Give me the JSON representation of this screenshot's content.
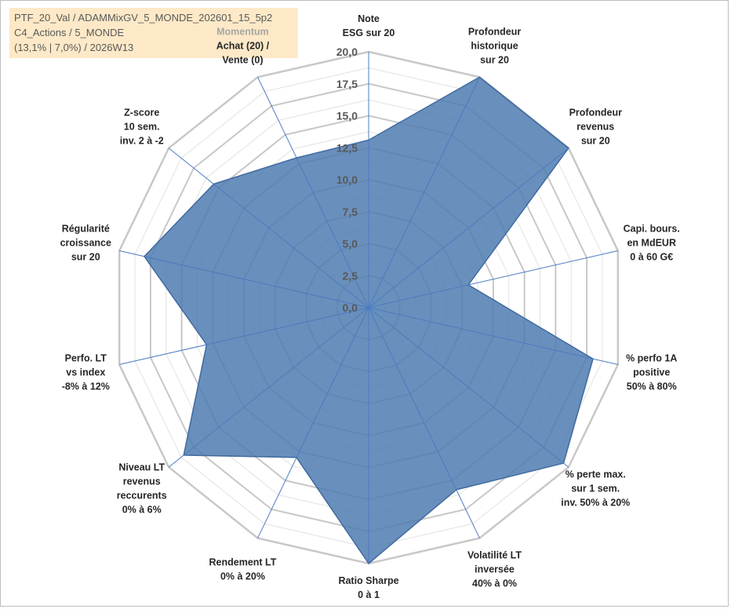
{
  "header": {
    "line1": "PTF_20_Val / ADAMMixGV_5_MONDE_202601_15_5p2",
    "line2": "C4_Actions / 5_MONDE",
    "line3": "(13,1% | 7,0%) / 2026W13"
  },
  "chart_data": {
    "type": "radar",
    "rmin": 0,
    "rmax": 20,
    "tick_labels": [
      "0,0",
      "2,5",
      "5,0",
      "7,5",
      "10,0",
      "12,5",
      "15,0",
      "17,5",
      "20,0"
    ],
    "grid": true,
    "axes": [
      {
        "label": [
          "Note",
          "ESG sur 20"
        ]
      },
      {
        "label": [
          "Profondeur",
          "historique",
          "sur 20"
        ]
      },
      {
        "label": [
          "Profondeur",
          "revenus",
          "sur 20"
        ]
      },
      {
        "label": [
          "Capi. bours.",
          "en MdEUR",
          "0 à 60 G€"
        ]
      },
      {
        "label": [
          "% perfo 1A",
          "positive",
          "50% à 80%"
        ]
      },
      {
        "label": [
          "% perte max.",
          "sur 1 sem.",
          "inv. 50% à 20%"
        ]
      },
      {
        "label": [
          "Volatilité LT",
          "inversée",
          "40% à 0%"
        ]
      },
      {
        "label": [
          "Ratio Sharpe",
          "0 à 1"
        ]
      },
      {
        "label": [
          "Rendement LT",
          "0% à 20%"
        ]
      },
      {
        "label": [
          "Niveau LT",
          "revenus",
          "reccurents",
          "0% à 6%"
        ]
      },
      {
        "label": [
          "Perfo. LT",
          "vs index",
          "-8% à 12%"
        ]
      },
      {
        "label": [
          "Régularité",
          "croissance",
          "sur 20"
        ]
      },
      {
        "label": [
          "Z-score",
          "10 sem.",
          "inv. 2 à -2"
        ]
      },
      {
        "label": [
          "Momentum",
          "Achat (20) /",
          "Vente (0)"
        ],
        "first_line_muted": true
      }
    ],
    "series": [
      {
        "values": [
          13.1,
          20.0,
          20.0,
          8.0,
          18.0,
          19.5,
          15.8,
          20.0,
          13.0,
          18.5,
          13.0,
          18.0,
          15.5,
          13.0
        ]
      }
    ],
    "colors": {
      "fill": "#4f7bb0",
      "stroke": "#3f6aa0",
      "grid_major": "#c8c8c8",
      "grid_minor": "#e2e2e2",
      "spoke": "#4a7cc0"
    }
  }
}
